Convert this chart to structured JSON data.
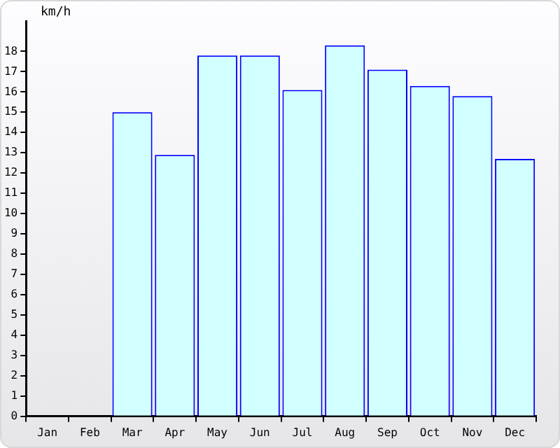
{
  "chart_data": {
    "type": "bar",
    "ylabel": "km/h",
    "categories": [
      "Jan",
      "Feb",
      "Mar",
      "Apr",
      "May",
      "Jun",
      "Jul",
      "Aug",
      "Sep",
      "Oct",
      "Nov",
      "Dec"
    ],
    "values": [
      null,
      null,
      15,
      12.9,
      17.8,
      17.8,
      16.1,
      18.3,
      17.1,
      16.3,
      15.8,
      12.7
    ],
    "color": "#d2ffff",
    "ylim": [
      0,
      19.5
    ],
    "yticks": [
      0,
      1,
      2,
      3,
      4,
      5,
      6,
      7,
      8,
      9,
      10,
      11,
      12,
      13,
      14,
      15,
      16,
      17,
      18
    ],
    "grid": false,
    "legend": false
  }
}
